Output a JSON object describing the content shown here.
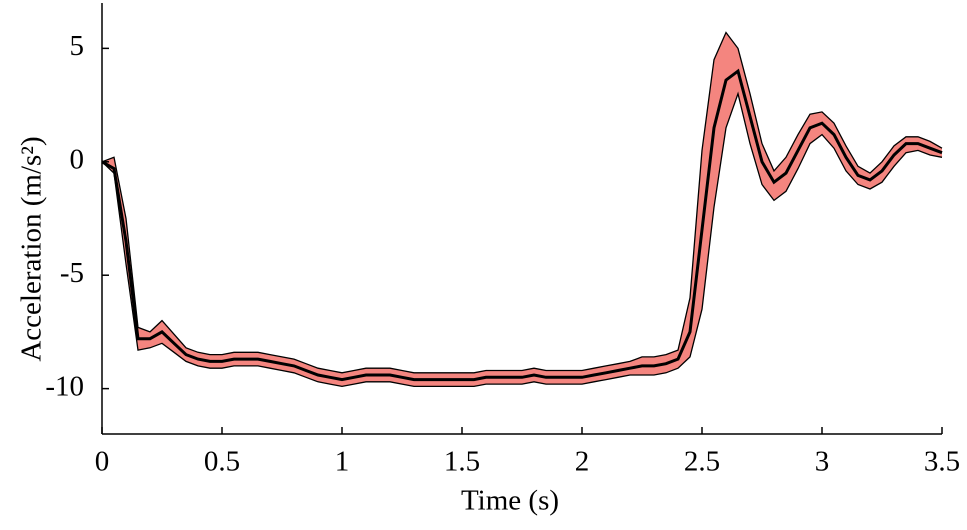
{
  "chart_data": {
    "type": "line",
    "xlabel": "Time (s)",
    "ylabel": "Acceleration (m/s²)",
    "x": [
      0,
      0.05,
      0.1,
      0.15,
      0.2,
      0.25,
      0.3,
      0.35,
      0.4,
      0.45,
      0.5,
      0.55,
      0.6,
      0.65,
      0.7,
      0.75,
      0.8,
      0.85,
      0.9,
      0.95,
      1,
      1.05,
      1.1,
      1.15,
      1.2,
      1.25,
      1.3,
      1.35,
      1.4,
      1.45,
      1.5,
      1.55,
      1.6,
      1.65,
      1.7,
      1.75,
      1.8,
      1.85,
      1.9,
      1.95,
      2,
      2.05,
      2.1,
      2.15,
      2.2,
      2.25,
      2.3,
      2.35,
      2.4,
      2.45,
      2.5,
      2.55,
      2.6,
      2.65,
      2.7,
      2.75,
      2.8,
      2.85,
      2.9,
      2.95,
      3,
      3.05,
      3.1,
      3.15,
      3.2,
      3.25,
      3.3,
      3.35,
      3.4,
      3.45,
      3.5
    ],
    "series": [
      {
        "color": "#000000",
        "values": [
          0,
          -0.3,
          -3.5,
          -7.8,
          -7.8,
          -7.5,
          -8.0,
          -8.5,
          -8.7,
          -8.8,
          -8.8,
          -8.7,
          -8.7,
          -8.7,
          -8.8,
          -8.9,
          -9.0,
          -9.2,
          -9.4,
          -9.5,
          -9.6,
          -9.5,
          -9.4,
          -9.4,
          -9.4,
          -9.5,
          -9.6,
          -9.6,
          -9.6,
          -9.6,
          -9.6,
          -9.6,
          -9.5,
          -9.5,
          -9.5,
          -9.5,
          -9.4,
          -9.5,
          -9.5,
          -9.5,
          -9.5,
          -9.4,
          -9.3,
          -9.2,
          -9.1,
          -9.0,
          -9.0,
          -8.9,
          -8.7,
          -7.5,
          -3.0,
          1.5,
          3.6,
          4.0,
          2.0,
          0,
          -0.9,
          -0.5,
          0.5,
          1.5,
          1.7,
          1.2,
          0.2,
          -0.6,
          -0.8,
          -0.4,
          0.3,
          0.8,
          0.8,
          0.6,
          0.4
        ]
      }
    ],
    "band": {
      "color": "#f4857f",
      "edge_color": "#000000",
      "upper": [
        0,
        0.2,
        -2.5,
        -7.3,
        -7.5,
        -7.0,
        -7.6,
        -8.2,
        -8.4,
        -8.5,
        -8.5,
        -8.4,
        -8.4,
        -8.4,
        -8.5,
        -8.6,
        -8.7,
        -8.9,
        -9.1,
        -9.2,
        -9.3,
        -9.2,
        -9.1,
        -9.1,
        -9.1,
        -9.2,
        -9.3,
        -9.3,
        -9.3,
        -9.3,
        -9.3,
        -9.3,
        -9.2,
        -9.2,
        -9.2,
        -9.2,
        -9.1,
        -9.2,
        -9.2,
        -9.2,
        -9.2,
        -9.1,
        -9.0,
        -8.9,
        -8.8,
        -8.6,
        -8.6,
        -8.5,
        -8.3,
        -6.0,
        0.5,
        4.5,
        5.7,
        5.0,
        3.0,
        0.8,
        -0.4,
        0.2,
        1.2,
        2.1,
        2.2,
        1.7,
        0.7,
        -0.2,
        -0.5,
        0,
        0.7,
        1.1,
        1.1,
        0.9,
        0.6
      ],
      "lower": [
        0,
        -0.5,
        -4.5,
        -8.3,
        -8.2,
        -8.0,
        -8.4,
        -8.8,
        -9.0,
        -9.1,
        -9.1,
        -9.0,
        -9.0,
        -9.0,
        -9.1,
        -9.2,
        -9.3,
        -9.5,
        -9.7,
        -9.8,
        -9.9,
        -9.8,
        -9.7,
        -9.7,
        -9.7,
        -9.8,
        -9.9,
        -9.9,
        -9.9,
        -9.9,
        -9.9,
        -9.9,
        -9.8,
        -9.8,
        -9.8,
        -9.8,
        -9.7,
        -9.8,
        -9.8,
        -9.8,
        -9.8,
        -9.7,
        -9.6,
        -9.5,
        -9.4,
        -9.4,
        -9.4,
        -9.3,
        -9.1,
        -8.6,
        -6.5,
        -2.0,
        1.5,
        3.0,
        0.8,
        -1.0,
        -1.7,
        -1.3,
        -0.3,
        0.8,
        1.2,
        0.6,
        -0.4,
        -1.0,
        -1.2,
        -0.9,
        -0.2,
        0.4,
        0.5,
        0.3,
        0.2
      ]
    },
    "xlim": [
      0,
      3.5
    ],
    "ylim": [
      -12,
      7
    ],
    "xticks": [
      0,
      0.5,
      1,
      1.5,
      2,
      2.5,
      3,
      3.5
    ],
    "yticks": [
      -10,
      -5,
      0,
      5
    ],
    "grid": false
  }
}
